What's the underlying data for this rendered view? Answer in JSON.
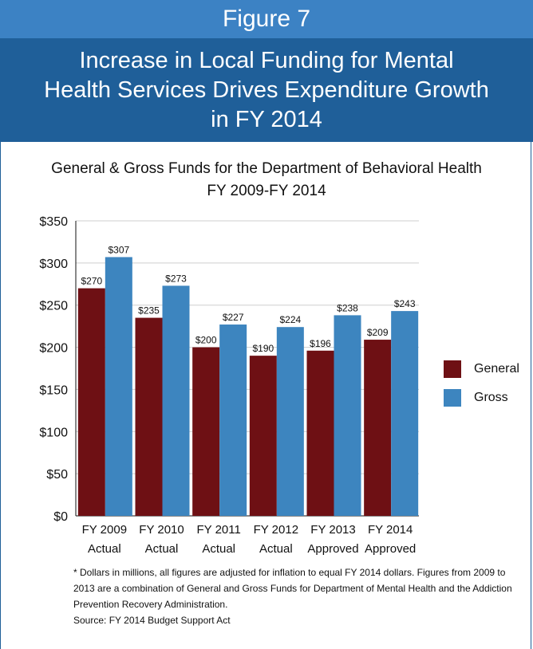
{
  "header": {
    "figure_label": "Figure 7",
    "title_lines": [
      "Increase in Local Funding for Mental",
      "Health Services Drives Expenditure Growth",
      "in FY 2014"
    ]
  },
  "colors": {
    "header_light": "#3c82c4",
    "header_dark": "#1f5f99",
    "general": "#6e1014",
    "gross": "#3d85bf"
  },
  "chart_data": {
    "type": "bar",
    "title": "General & Gross Funds for the Department of Behavioral Health",
    "subtitle": "FY 2009-FY 2014",
    "categories": [
      [
        "FY 2009",
        "Actual"
      ],
      [
        "FY 2010",
        "Actual"
      ],
      [
        "FY 2011",
        "Actual"
      ],
      [
        "FY 2012",
        "Actual"
      ],
      [
        "FY 2013",
        "Approved"
      ],
      [
        "FY 2014",
        "Approved"
      ]
    ],
    "series": [
      {
        "name": "General",
        "values": [
          270,
          235,
          200,
          190,
          196,
          209
        ],
        "labels": [
          "$270",
          "$235",
          "$200",
          "$190",
          "$196",
          "$209"
        ]
      },
      {
        "name": "Gross",
        "values": [
          307,
          273,
          227,
          224,
          238,
          243
        ],
        "labels": [
          "$307",
          "$273",
          "$227",
          "$224",
          "$238",
          "$243"
        ]
      }
    ],
    "ylim": [
      0,
      350
    ],
    "yticks": [
      0,
      50,
      100,
      150,
      200,
      250,
      300,
      350
    ],
    "ytick_labels": [
      "$0",
      "$50",
      "$100",
      "$150",
      "$200",
      "$250",
      "$300",
      "$350"
    ],
    "grid": true,
    "legend_position": "right"
  },
  "footnote": {
    "lines": [
      "* Dollars in millions, all figures are adjusted for inflation to equal FY 2014 dollars. Figures from 2009 to",
      "2013 are a combination of General and Gross Funds for Department of Mental Health and the Addiction",
      "Prevention Recovery Administration."
    ],
    "source": "Source: FY 2014 Budget Support Act"
  }
}
